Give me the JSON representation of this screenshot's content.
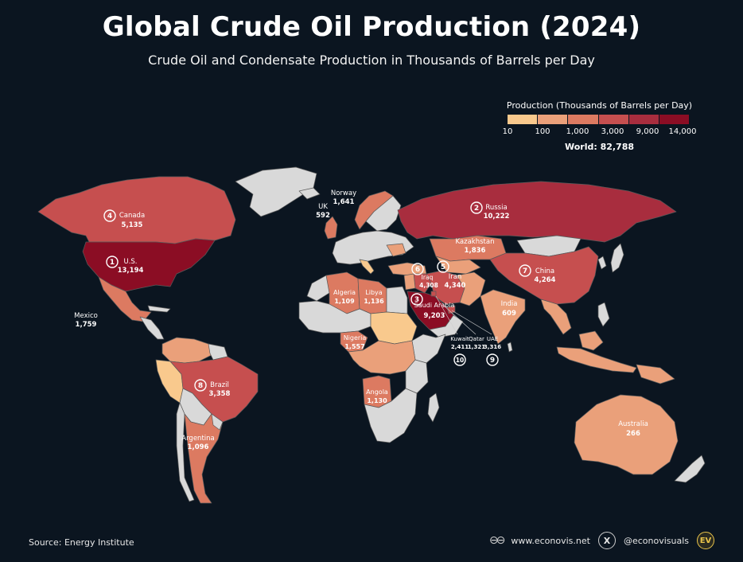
{
  "title": "Global Crude Oil Production (2024)",
  "subtitle": "Crude Oil and Condensate Production in Thousands of Barrels per Day",
  "legend": {
    "title": "Production (Thousands of Barrels per Day)",
    "colors": [
      "#f9c98d",
      "#eaa07a",
      "#dc7a61",
      "#c64f4f",
      "#a82d3e",
      "#8b0d24"
    ],
    "ticks": [
      "10",
      "100",
      "1,000",
      "3,000",
      "9,000",
      "14,000"
    ],
    "world": "World: 82,788"
  },
  "colors": {
    "background": "#0b1520",
    "no_data": "#d9d9d9",
    "border": "#5a5a5a"
  },
  "labels": [
    {
      "id": "canada",
      "rank": "4",
      "name": "Canada",
      "value": "5,135"
    },
    {
      "id": "us",
      "rank": "1",
      "name": "U.S.",
      "value": "13,194"
    },
    {
      "id": "mexico",
      "name": "Mexico",
      "value": "1,759"
    },
    {
      "id": "brazil",
      "rank": "8",
      "name": "Brazil",
      "value": "3,358"
    },
    {
      "id": "argentina",
      "name": "Argentina",
      "value": "1,096"
    },
    {
      "id": "norway",
      "name": "Norway",
      "value": "1,641"
    },
    {
      "id": "uk",
      "name": "UK",
      "value": "592"
    },
    {
      "id": "russia",
      "rank": "2",
      "name": "Russia",
      "value": "10,222"
    },
    {
      "id": "kazakhstan",
      "name": "Kazakhstan",
      "value": "1,836"
    },
    {
      "id": "china",
      "rank": "7",
      "name": "China",
      "value": "4,264"
    },
    {
      "id": "iran",
      "rank": "5",
      "name": "Iran",
      "value": "4,340"
    },
    {
      "id": "iraq",
      "rank": "6",
      "name": "Iraq",
      "value": "4,308"
    },
    {
      "id": "saudi",
      "rank": "3",
      "name": "Saudi Arabia",
      "value": "9,203"
    },
    {
      "id": "kuwait",
      "rank": "10",
      "name": "Kuwait",
      "value": "2,411"
    },
    {
      "id": "qatar",
      "name": "Qatar",
      "value": "1,321"
    },
    {
      "id": "uae",
      "rank": "9",
      "name": "UAE",
      "value": "3,316"
    },
    {
      "id": "algeria",
      "name": "Algeria",
      "value": "1,109"
    },
    {
      "id": "libya",
      "name": "Libya",
      "value": "1,136"
    },
    {
      "id": "nigeria",
      "name": "Nigeria",
      "value": "1,557"
    },
    {
      "id": "angola",
      "name": "Angola",
      "value": "1,130"
    },
    {
      "id": "india",
      "name": "India",
      "value": "609"
    },
    {
      "id": "australia",
      "name": "Australia",
      "value": "266"
    }
  ],
  "footer": {
    "source": "Source: Energy Institute",
    "website": "www.econovis.net",
    "social": "@econovisuals",
    "logo_text": "EV"
  }
}
